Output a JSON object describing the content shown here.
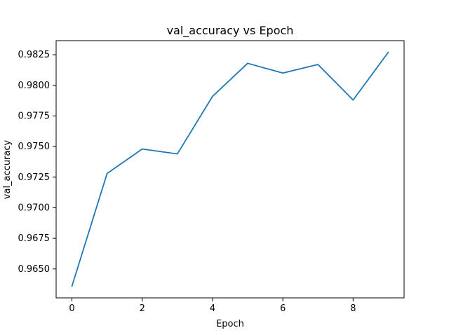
{
  "chart_data": {
    "type": "line",
    "title": "val_accuracy vs Epoch",
    "xlabel": "Epoch",
    "ylabel": "val_accuracy",
    "x": [
      0,
      1,
      2,
      3,
      4,
      5,
      6,
      7,
      8,
      9
    ],
    "series": [
      {
        "values": [
          0.9636,
          0.9728,
          0.9748,
          0.9744,
          0.9791,
          0.9818,
          0.981,
          0.9817,
          0.9788,
          0.9827
        ],
        "color": "#1f77b4"
      }
    ],
    "xlim": [
      -0.45,
      9.45
    ],
    "ylim": [
      0.96264,
      0.98365
    ],
    "xticks": [
      0,
      2,
      4,
      6,
      8
    ],
    "xtick_labels": [
      "0",
      "2",
      "4",
      "6",
      "8"
    ],
    "yticks": [
      0.965,
      0.9675,
      0.97,
      0.9725,
      0.975,
      0.9775,
      0.98,
      0.9825
    ],
    "ytick_labels": [
      "0.9650",
      "0.9675",
      "0.9700",
      "0.9725",
      "0.9750",
      "0.9775",
      "0.9800",
      "0.9825"
    ],
    "grid": false,
    "legend": "none"
  }
}
